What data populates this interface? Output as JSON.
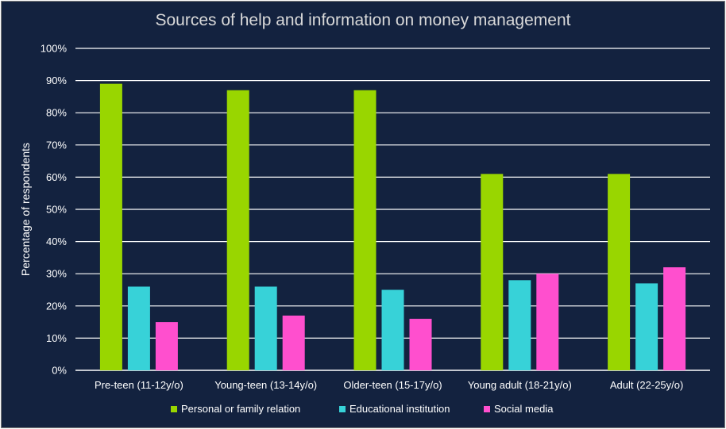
{
  "chart_data": {
    "type": "bar",
    "title": "Sources of help and information on money management",
    "xlabel": "",
    "ylabel": "Percentage of respondents",
    "categories": [
      "Pre-teen (11-12y/o)",
      "Young-teen (13-14y/o)",
      "Older-teen (15-17y/o)",
      "Young adult (18-21y/o)",
      "Adult (22-25y/o)"
    ],
    "series": [
      {
        "name": "Personal or family relation",
        "color": "#99d600",
        "values": [
          89,
          87,
          87,
          61,
          61
        ]
      },
      {
        "name": "Educational institution",
        "color": "#37d2d8",
        "values": [
          26,
          26,
          25,
          28,
          27
        ]
      },
      {
        "name": "Social media",
        "color": "#ff4fce",
        "values": [
          15,
          17,
          16,
          30,
          32
        ]
      }
    ],
    "ylim": [
      0,
      100
    ],
    "yticks": [
      "0%",
      "10%",
      "20%",
      "30%",
      "40%",
      "50%",
      "60%",
      "70%",
      "80%",
      "90%",
      "100%"
    ],
    "grid": true,
    "legend_position": "bottom"
  }
}
